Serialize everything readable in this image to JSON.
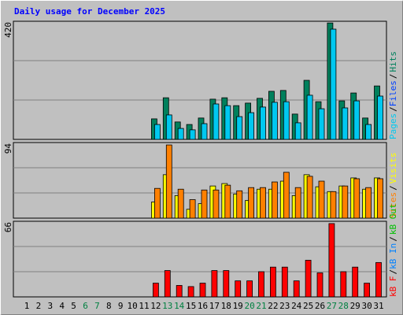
{
  "chart_data": [
    {
      "type": "bar",
      "title": "Daily usage for December 2025",
      "categories": [
        "1",
        "2",
        "3",
        "4",
        "5",
        "6",
        "7",
        "8",
        "9",
        "10",
        "11",
        "12",
        "13",
        "14",
        "15",
        "16",
        "17",
        "18",
        "19",
        "20",
        "21",
        "22",
        "23",
        "24",
        "25",
        "26",
        "27",
        "28",
        "29",
        "30",
        "31"
      ],
      "category_colors": [
        "#000000",
        "#000000",
        "#000000",
        "#000000",
        "#000000",
        "#008040",
        "#008040",
        "#000000",
        "#000000",
        "#000000",
        "#000000",
        "#000000",
        "#008040",
        "#008040",
        "#000000",
        "#000000",
        "#000000",
        "#000000",
        "#000000",
        "#008040",
        "#008040",
        "#000000",
        "#000000",
        "#000000",
        "#000000",
        "#000000",
        "#008040",
        "#008040",
        "#000000",
        "#000000",
        "#000000"
      ],
      "legend_separator": "/",
      "ylim": [
        0,
        420
      ],
      "yticks": [
        420
      ],
      "series": [
        {
          "name": "Hits",
          "color": "#00805c",
          "values": [
            null,
            null,
            null,
            null,
            null,
            null,
            null,
            null,
            null,
            null,
            null,
            73,
            148,
            62,
            53,
            76,
            143,
            148,
            120,
            129,
            146,
            171,
            174,
            90,
            210,
            134,
            414,
            137,
            165,
            76,
            190
          ]
        },
        {
          "name": "Files",
          "color": "#0040ff"
        },
        {
          "name": "Pages",
          "color": "#00c8f0",
          "values": [
            null,
            null,
            null,
            null,
            null,
            null,
            null,
            null,
            null,
            null,
            null,
            53,
            87,
            39,
            34,
            56,
            126,
            120,
            81,
            95,
            115,
            132,
            134,
            59,
            157,
            109,
            392,
            112,
            137,
            53,
            154
          ]
        }
      ]
    },
    {
      "type": "bar",
      "ylim": [
        0,
        94
      ],
      "yticks": [
        94
      ],
      "series": [
        {
          "name": "Visits",
          "color": "#ffff00",
          "values": [
            null,
            null,
            null,
            null,
            null,
            null,
            null,
            null,
            null,
            null,
            null,
            20,
            54,
            28,
            11,
            18,
            40,
            43,
            30,
            22,
            36,
            36,
            46,
            28,
            54,
            39,
            33,
            40,
            50,
            36,
            50
          ]
        },
        {
          "name": "Sites",
          "color": "#ff8000",
          "values": [
            null,
            null,
            null,
            null,
            null,
            null,
            null,
            null,
            null,
            null,
            null,
            37,
            91,
            36,
            23,
            35,
            35,
            41,
            34,
            38,
            38,
            45,
            57,
            38,
            52,
            46,
            33,
            40,
            49,
            38,
            49
          ]
        }
      ]
    },
    {
      "type": "bar",
      "ylim": [
        0,
        66
      ],
      "yticks": [
        66
      ],
      "series": [
        {
          "name": "kB Out",
          "color": "#00c000"
        },
        {
          "name": "kB In",
          "color": "#0080ff"
        },
        {
          "name": "kB F",
          "color": "#ff0000",
          "values": [
            null,
            null,
            null,
            null,
            null,
            null,
            null,
            null,
            null,
            null,
            null,
            12,
            23,
            10,
            9,
            12,
            23,
            23,
            14,
            14,
            22,
            26,
            26,
            14,
            32,
            21,
            64,
            22,
            26,
            12,
            30
          ]
        }
      ]
    }
  ]
}
